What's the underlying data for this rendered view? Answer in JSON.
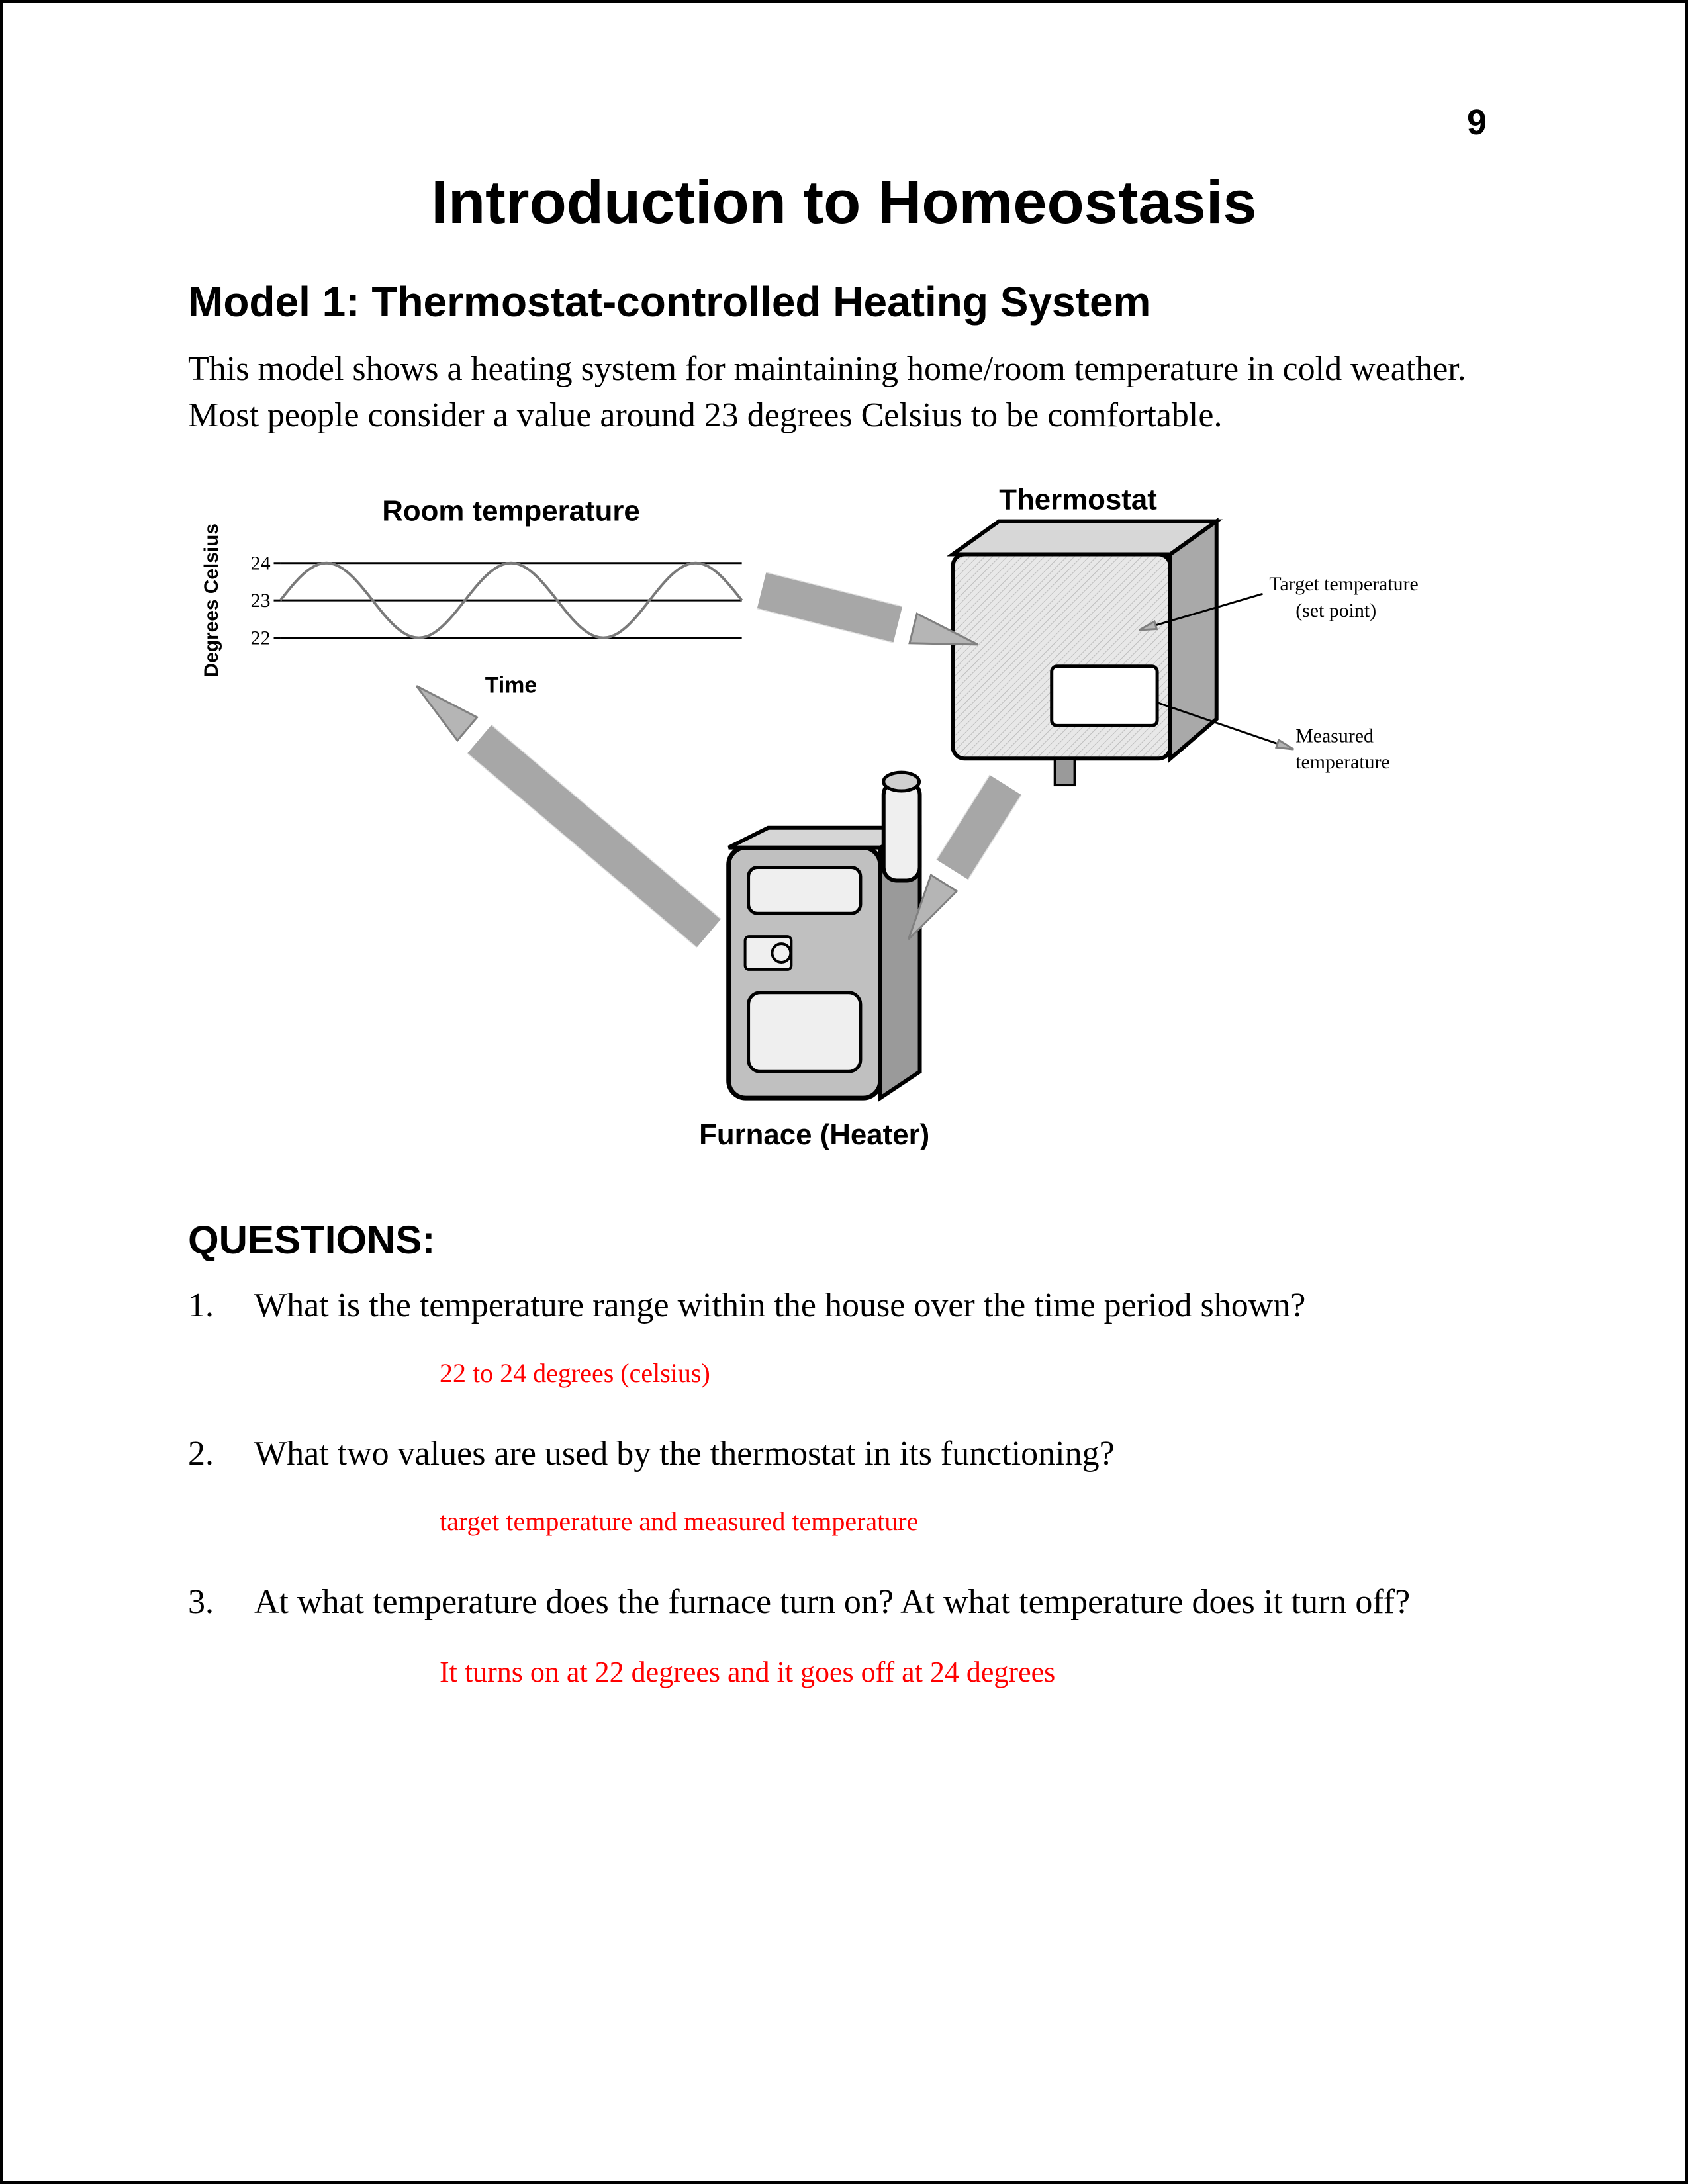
{
  "page_number": "9",
  "title": "Introduction to Homeostasis",
  "subtitle": "Model 1: Thermostat-controlled Heating System",
  "intro": "This model shows a heating system for maintaining home/room temperature in cold weather. Most people consider a value around 23 degrees Celsius to be comfortable.",
  "diagram": {
    "type": "flowchart",
    "background_color": "#ffffff",
    "arrow_fill": "#b5b5b5",
    "arrow_stroke": "#808080",
    "device_fill": "#c0c0c0",
    "device_stroke": "#000000",
    "text_color": "#000000",
    "chart": {
      "title": "Room temperature",
      "ylabel": "Degrees Celsius",
      "xlabel": "Time",
      "yticks": [
        "24",
        "23",
        "22"
      ],
      "ylim": [
        21.5,
        24.5
      ],
      "wave_amplitude": 1.0,
      "wave_mid": 23,
      "wave_cycles": 2.5,
      "grid_color": "#000000",
      "wave_color": "#7a7a7a",
      "title_fontsize": 44,
      "label_fontsize": 30,
      "tick_fontsize": 30
    },
    "thermostat": {
      "label": "Thermostat",
      "callout1": "Target temperature (set point)",
      "callout2": "Measured temperature",
      "label_fontsize": 44,
      "callout_fontsize": 30
    },
    "furnace": {
      "label": "Furnace (Heater)",
      "label_fontsize": 44
    }
  },
  "questions_heading": "QUESTIONS:",
  "questions": [
    {
      "prompt": "What is the temperature range within the house over the time period shown?",
      "answer": "22 to 24 degrees (celsius)",
      "answer_color": "#ff0000",
      "answer_fontsize": 40
    },
    {
      "prompt": "What two values are used by the thermostat in its functioning?",
      "answer": "target temperature and measured temperature",
      "answer_color": "#ff0000",
      "answer_fontsize": 40
    },
    {
      "prompt": "At what temperature does the furnace turn on? At what temperature does it turn off?",
      "answer": "It turns on at 22 degrees and it goes off at 24 degrees",
      "answer_color": "#ff0000",
      "answer_fontsize": 44
    }
  ]
}
